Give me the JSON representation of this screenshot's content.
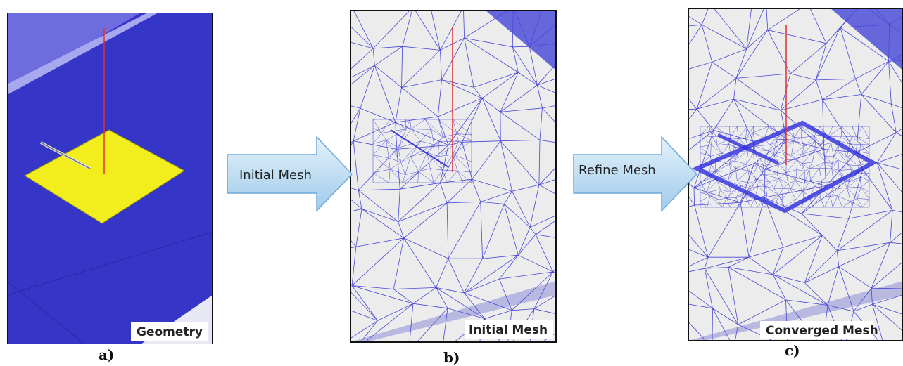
{
  "panels": [
    {
      "label": "Geometry",
      "caption": "a)"
    },
    {
      "label": "Initial Mesh",
      "caption": "b)"
    },
    {
      "label": "Converged Mesh",
      "caption": "c)"
    }
  ],
  "arrows": [
    {
      "label": "Initial Mesh"
    },
    {
      "label": "Refine Mesh"
    }
  ]
}
